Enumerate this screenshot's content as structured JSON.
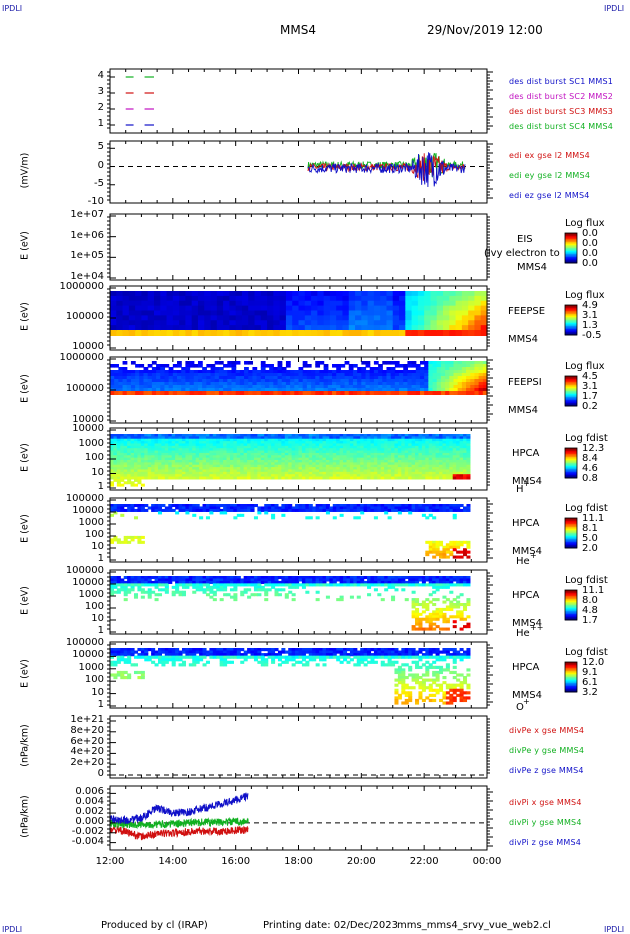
{
  "header": {
    "corner_tl": "IPDLI",
    "corner_tr": "IPDLI",
    "corner_bl": "IPDLI",
    "corner_br": "IPDLI",
    "spacecraft": "MMS4",
    "datetime": "29/Nov/2019 12:00"
  },
  "footer": {
    "produced": "Produced by cl (IRAP)",
    "printed": "Printing date: 02/Dec/2023",
    "file": "mms_mms4_srvy_vue_web2.cl"
  },
  "colors": {
    "blue": "#1010c8",
    "green": "#10b020",
    "red": "#d01010",
    "magenta": "#c010c0"
  },
  "chart_data": [
    {
      "type": "line",
      "panel": "burst",
      "yticks": [
        "4",
        "3",
        "2",
        "1"
      ],
      "ylim": [
        0.5,
        4.5
      ],
      "legend": [
        {
          "label": "des dist burst SC1 MMS1",
          "color": "#1010c8"
        },
        {
          "label": "des dist burst SC2 MMS2",
          "color": "#c010c0"
        },
        {
          "label": "des dist burst SC3 MMS3",
          "color": "#d01010"
        },
        {
          "label": "des dist burst SC4 MMS4",
          "color": "#10b020"
        }
      ],
      "series": [
        {
          "level": 4,
          "color": "#10b020",
          "segments": [
            [
              12.5,
              12.75
            ],
            [
              13.1,
              13.4
            ]
          ]
        },
        {
          "level": 3,
          "color": "#d01010",
          "segments": [
            [
              12.5,
              12.75
            ],
            [
              13.1,
              13.4
            ]
          ]
        },
        {
          "level": 2,
          "color": "#c010c0",
          "segments": [
            [
              12.5,
              12.75
            ],
            [
              13.1,
              13.4
            ]
          ]
        },
        {
          "level": 1,
          "color": "#1010c8",
          "segments": [
            [
              12.5,
              12.75
            ],
            [
              13.1,
              13.4
            ]
          ]
        }
      ]
    },
    {
      "type": "line",
      "panel": "edi",
      "ylabel": "(mV/m)",
      "yticks": [
        "5",
        "0",
        "-5",
        "-10"
      ],
      "ylim": [
        -10,
        7
      ],
      "legend": [
        {
          "label": "edi ex gse l2 MMS4",
          "color": "#d01010"
        },
        {
          "label": "edi ey gse l2 MMS4",
          "color": "#10b020"
        },
        {
          "label": "edi ez gse l2 MMS4",
          "color": "#1010c8"
        }
      ],
      "data_span_hours": [
        18.3,
        23.3
      ]
    },
    {
      "type": "heatmap",
      "panel": "EIS",
      "ylabel": "E (eV)",
      "yticks": [
        "1e+07",
        "1e+06",
        "1e+05",
        "1e+04"
      ],
      "instrument": [
        "EIS",
        "MMS4"
      ],
      "extra_label": "(ivy electron to",
      "colorbar_title": "Log flux",
      "colorbar_values": [
        "0.0",
        "0.0",
        "0.0",
        "0.0"
      ]
    },
    {
      "type": "heatmap",
      "panel": "FEEPSE",
      "ylabel": "E (eV)",
      "yticks": [
        "1000000",
        "100000",
        "10000"
      ],
      "instrument": [
        "FEEPSE",
        "MMS4"
      ],
      "colorbar_title": "Log flux",
      "colorbar_values": [
        "4.9",
        "3.1",
        "1.3",
        "-0.5"
      ]
    },
    {
      "type": "heatmap",
      "panel": "FEEPSI",
      "ylabel": "E (eV)",
      "yticks": [
        "1000000",
        "100000",
        "10000"
      ],
      "instrument": [
        "FEEPSI",
        "MMS4"
      ],
      "colorbar_title": "Log flux",
      "colorbar_values": [
        "4.5",
        "3.1",
        "1.7",
        "0.2"
      ]
    },
    {
      "type": "heatmap",
      "panel": "HPCA-H",
      "ylabel": "E (eV)",
      "yticks": [
        "10000",
        "1000",
        "100",
        "10",
        "1"
      ],
      "instrument": [
        "HPCA",
        "MMS4"
      ],
      "species": "H",
      "charge": "+",
      "colorbar_title": "Log fdist",
      "colorbar_values": [
        "12.3",
        "8.4",
        "4.6",
        "0.8"
      ]
    },
    {
      "type": "heatmap",
      "panel": "HPCA-He+",
      "ylabel": "E (eV)",
      "yticks": [
        "100000",
        "10000",
        "1000",
        "100",
        "10",
        "1"
      ],
      "instrument": [
        "HPCA",
        "MMS4"
      ],
      "species": "He",
      "charge": "+",
      "colorbar_title": "Log fdist",
      "colorbar_values": [
        "11.1",
        "8.1",
        "5.0",
        "2.0"
      ]
    },
    {
      "type": "heatmap",
      "panel": "HPCA-He++",
      "ylabel": "E (eV)",
      "yticks": [
        "100000",
        "10000",
        "1000",
        "100",
        "10",
        "1"
      ],
      "instrument": [
        "HPCA",
        "MMS4"
      ],
      "species": "He",
      "charge": "++",
      "colorbar_title": "Log fdist",
      "colorbar_values": [
        "11.1",
        "8.0",
        "4.8",
        "1.7"
      ]
    },
    {
      "type": "heatmap",
      "panel": "HPCA-O+",
      "ylabel": "E (eV)",
      "yticks": [
        "100000",
        "10000",
        "1000",
        "100",
        "10",
        "1"
      ],
      "instrument": [
        "HPCA",
        "MMS4"
      ],
      "species": "O",
      "charge": "+",
      "colorbar_title": "Log fdist",
      "colorbar_values": [
        "12.0",
        "9.1",
        "6.1",
        "3.2"
      ]
    },
    {
      "type": "line",
      "panel": "divPe",
      "ylabel": "(nPa/km)",
      "yticks": [
        "1e+21",
        "8e+20",
        "6e+20",
        "4e+20",
        "2e+20",
        "0"
      ],
      "ylim": [
        0,
        1e+21
      ],
      "legend": [
        {
          "label": "divPe x gse MMS4",
          "color": "#d01010"
        },
        {
          "label": "divPe y gse MMS4",
          "color": "#10b020"
        },
        {
          "label": "divPe z gse MMS4",
          "color": "#1010c8"
        }
      ]
    },
    {
      "type": "line",
      "panel": "divPi",
      "ylabel": "(nPa/km)",
      "yticks": [
        "0.006",
        "0.004",
        "0.002",
        "0.000",
        "-0.002",
        "-0.004"
      ],
      "ylim": [
        -0.0055,
        0.0075
      ],
      "legend": [
        {
          "label": "divPi x gse MMS4",
          "color": "#d01010"
        },
        {
          "label": "divPi y gse MMS4",
          "color": "#10b020"
        },
        {
          "label": "divPi z gse MMS4",
          "color": "#1010c8"
        }
      ],
      "series": [
        {
          "name": "divPi x gse MMS4",
          "color": "#d01010",
          "x": [
            12.0,
            12.5,
            13.0,
            13.5,
            14.0,
            14.5,
            15.0,
            15.5,
            16.0,
            16.4
          ],
          "y": [
            -0.0012,
            -0.0018,
            -0.0028,
            -0.0022,
            -0.002,
            -0.0018,
            -0.0016,
            -0.0017,
            -0.0015,
            -0.0014
          ]
        },
        {
          "name": "divPi y gse MMS4",
          "color": "#10b020",
          "x": [
            12.0,
            12.5,
            13.0,
            13.5,
            14.0,
            14.5,
            15.0,
            15.5,
            16.0,
            16.4
          ],
          "y": [
            0.0,
            -0.0004,
            -0.0002,
            -0.0003,
            -0.0002,
            0.0,
            0.0002,
            0.0001,
            0.0003,
            0.0002
          ]
        },
        {
          "name": "divPi z gse MMS4",
          "color": "#1010c8",
          "x": [
            12.0,
            12.5,
            13.0,
            13.5,
            14.0,
            14.5,
            15.0,
            15.5,
            16.0,
            16.4
          ],
          "y": [
            0.0008,
            0.0005,
            0.001,
            0.003,
            0.002,
            0.0022,
            0.003,
            0.0038,
            0.0046,
            0.0056
          ]
        }
      ]
    }
  ],
  "xaxis": {
    "ticks": [
      "12:00",
      "14:00",
      "16:00",
      "18:00",
      "20:00",
      "22:00",
      "00:00"
    ],
    "range_hours": [
      12,
      24
    ]
  }
}
